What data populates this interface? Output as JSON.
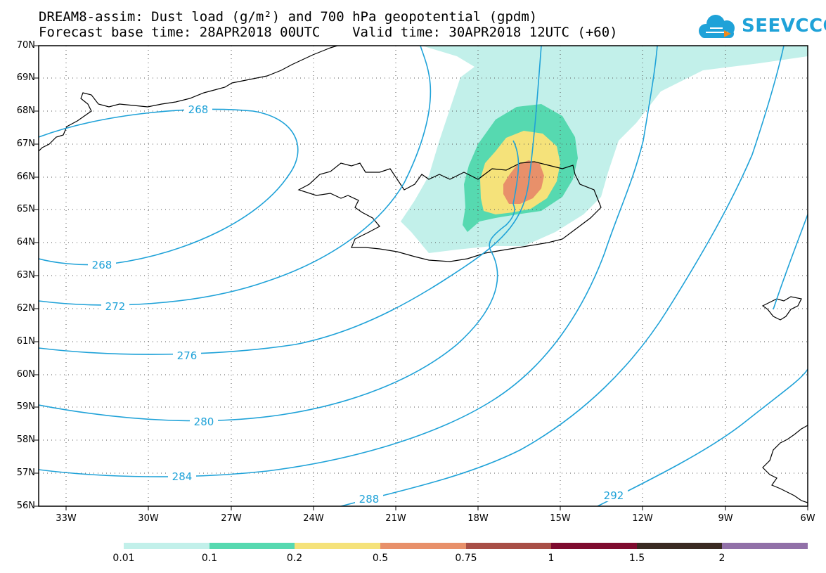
{
  "title": {
    "line1": "DREAM8-assim: Dust load (g/m²) and 700 hPa geopotential (gpdm)",
    "line2": "Forecast base time: 28APR2018 00UTC    Valid time: 30APR2018 12UTC (+60)"
  },
  "logo": {
    "text": "SEEVCCC",
    "icon": "cloud-icon",
    "color": "#1fa2d8"
  },
  "map": {
    "lat_range": [
      "56N",
      "70N"
    ],
    "lon_range": [
      "34W",
      "6W"
    ],
    "lat_labels": [
      "70N",
      "69N",
      "68N",
      "67N",
      "66N",
      "65N",
      "64N",
      "63N",
      "62N",
      "61N",
      "60N",
      "59N",
      "58N",
      "57N",
      "56N"
    ],
    "lon_labels": [
      "33W",
      "30W",
      "27W",
      "24W",
      "21W",
      "18W",
      "15W",
      "12W",
      "9W",
      "6W"
    ],
    "grid": "dotted",
    "contour_color": "#1fa2d8",
    "contour_labels": [
      "268",
      "268",
      "272",
      "276",
      "280",
      "284",
      "288",
      "292"
    ]
  },
  "legend": {
    "labels": [
      "0.01",
      "0.1",
      "0.2",
      "0.5",
      "0.75",
      "1",
      "1.5",
      "2"
    ],
    "colors": [
      "#c2f0ea",
      "#56d9b0",
      "#f5e27a",
      "#e8906a",
      "#a84e46",
      "#7e0b2f",
      "#3a2a22",
      "#9170a8"
    ]
  }
}
